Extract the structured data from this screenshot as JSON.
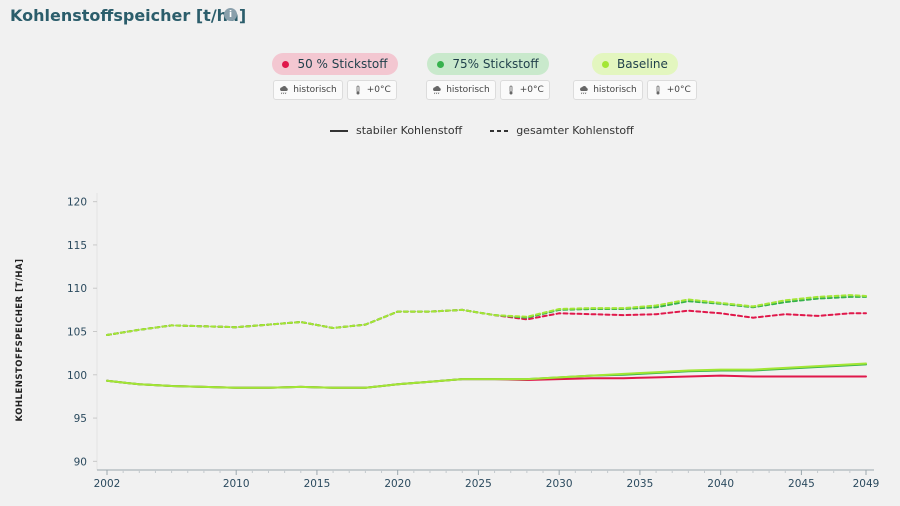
{
  "header": {
    "title": "Kohlenstoffspeicher [t/ha]",
    "info_icon": "info-icon"
  },
  "scenarios": [
    {
      "label": "50 % Stickstoff",
      "color": "#e0184b",
      "bg": "#f3c7d1",
      "tags": [
        "historisch",
        "+0°C"
      ]
    },
    {
      "label": "75% Stickstoff",
      "color": "#37b24d",
      "bg": "#c9e9cc",
      "tags": [
        "historisch",
        "+0°C"
      ]
    },
    {
      "label": "Baseline",
      "color": "#a3e635",
      "bg": "#e3f6bf",
      "tags": [
        "historisch",
        "+0°C"
      ]
    }
  ],
  "line_legend": {
    "solid": "stabiler Kohlenstoff",
    "dashed": "gesamter Kohlenstoff"
  },
  "chart_data": {
    "type": "line",
    "ylabel": "KOHLENSTOFFSPEICHER [T/HA]",
    "xlabel": "",
    "ylim": [
      89,
      121
    ],
    "xlim": [
      2002,
      2049
    ],
    "yticks": [
      90,
      95,
      100,
      105,
      110,
      115,
      120
    ],
    "xticks": [
      2002,
      2010,
      2015,
      2020,
      2025,
      2030,
      2035,
      2040,
      2045,
      2049
    ],
    "x": [
      2002,
      2004,
      2006,
      2008,
      2010,
      2012,
      2014,
      2016,
      2018,
      2020,
      2022,
      2024,
      2026,
      2028,
      2030,
      2032,
      2034,
      2036,
      2038,
      2040,
      2042,
      2044,
      2046,
      2048,
      2049
    ],
    "series": [
      {
        "scenario": "50 % Stickstoff",
        "kind": "stabil",
        "style": "solid",
        "color": "#e0184b",
        "values": [
          99.3,
          98.9,
          98.7,
          98.6,
          98.5,
          98.5,
          98.6,
          98.5,
          98.5,
          98.9,
          99.2,
          99.5,
          99.5,
          99.4,
          99.5,
          99.6,
          99.6,
          99.7,
          99.8,
          99.9,
          99.8,
          99.8,
          99.8,
          99.8,
          99.8
        ]
      },
      {
        "scenario": "75% Stickstoff",
        "kind": "stabil",
        "style": "solid",
        "color": "#37b24d",
        "values": [
          99.3,
          98.9,
          98.7,
          98.6,
          98.5,
          98.5,
          98.6,
          98.5,
          98.5,
          98.9,
          99.2,
          99.5,
          99.5,
          99.5,
          99.7,
          99.9,
          100.0,
          100.2,
          100.4,
          100.5,
          100.5,
          100.7,
          100.9,
          101.1,
          101.2
        ]
      },
      {
        "scenario": "Baseline",
        "kind": "stabil",
        "style": "solid",
        "color": "#a3e635",
        "values": [
          99.3,
          98.9,
          98.7,
          98.6,
          98.5,
          98.5,
          98.6,
          98.5,
          98.5,
          98.9,
          99.2,
          99.5,
          99.5,
          99.5,
          99.7,
          99.9,
          100.1,
          100.3,
          100.5,
          100.6,
          100.6,
          100.8,
          101.0,
          101.2,
          101.3
        ]
      },
      {
        "scenario": "50 % Stickstoff",
        "kind": "gesamt",
        "style": "dashed",
        "color": "#e0184b",
        "values": [
          104.6,
          105.2,
          105.7,
          105.6,
          105.5,
          105.8,
          106.1,
          105.4,
          105.8,
          107.3,
          107.3,
          107.5,
          106.9,
          106.4,
          107.1,
          107.0,
          106.9,
          107.0,
          107.4,
          107.1,
          106.6,
          107.0,
          106.8,
          107.1,
          107.1
        ]
      },
      {
        "scenario": "75% Stickstoff",
        "kind": "gesamt",
        "style": "dashed",
        "color": "#37b24d",
        "values": [
          104.6,
          105.2,
          105.7,
          105.6,
          105.5,
          105.8,
          106.1,
          105.4,
          105.8,
          107.3,
          107.3,
          107.5,
          106.9,
          106.6,
          107.5,
          107.6,
          107.6,
          107.8,
          108.5,
          108.2,
          107.8,
          108.4,
          108.8,
          109.0,
          109.0
        ]
      },
      {
        "scenario": "Baseline",
        "kind": "gesamt",
        "style": "dashed",
        "color": "#a3e635",
        "values": [
          104.6,
          105.2,
          105.7,
          105.6,
          105.5,
          105.8,
          106.1,
          105.4,
          105.8,
          107.3,
          107.3,
          107.5,
          106.9,
          106.7,
          107.6,
          107.7,
          107.7,
          108.0,
          108.7,
          108.3,
          107.9,
          108.6,
          109.0,
          109.2,
          109.1
        ]
      }
    ]
  }
}
